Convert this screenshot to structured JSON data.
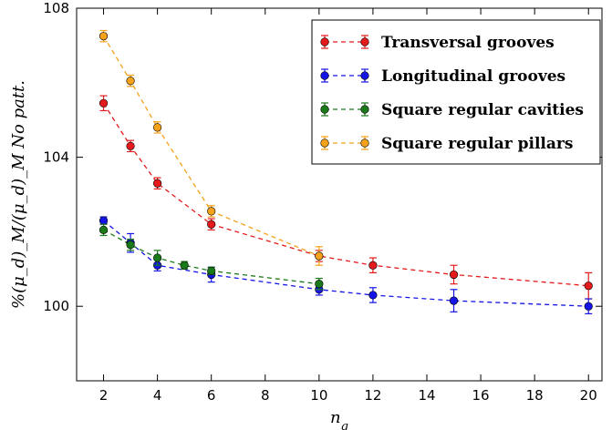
{
  "chart_data": {
    "type": "scatter",
    "title": "",
    "xlabel": "n_g",
    "ylabel": "%(μ_d)_M/(μ_d)_M No patt.",
    "xlim": [
      1,
      20.5
    ],
    "ylim": [
      98,
      108
    ],
    "x_ticks": [
      "2",
      "4",
      "6",
      "8",
      "10",
      "12",
      "14",
      "16",
      "18",
      "20"
    ],
    "x_tick_values": [
      2,
      4,
      6,
      8,
      10,
      12,
      14,
      16,
      18,
      20
    ],
    "y_ticks": [
      "100",
      "104",
      "108"
    ],
    "y_tick_values": [
      100,
      104,
      108
    ],
    "grid": false,
    "legend_position": "top-right",
    "series": [
      {
        "name": "Transversal grooves",
        "color": "#e41a1c",
        "x": [
          2,
          3,
          4,
          6,
          10,
          12,
          15,
          20
        ],
        "y": [
          105.45,
          104.3,
          103.3,
          102.2,
          101.35,
          101.1,
          100.85,
          100.55
        ],
        "err": [
          0.2,
          0.15,
          0.15,
          0.15,
          0.15,
          0.2,
          0.25,
          0.35
        ]
      },
      {
        "name": "Longitudinal grooves",
        "color": "#1414e6",
        "x": [
          2,
          3,
          4,
          6,
          10,
          12,
          15,
          20
        ],
        "y": [
          102.3,
          101.7,
          101.1,
          100.85,
          100.45,
          100.3,
          100.15,
          100.0
        ],
        "err": [
          0.1,
          0.25,
          0.15,
          0.2,
          0.15,
          0.2,
          0.3,
          0.2
        ]
      },
      {
        "name": "Square regular cavities",
        "color": "#1a7a1a",
        "x": [
          2,
          3,
          4,
          5,
          6,
          10
        ],
        "y": [
          102.05,
          101.65,
          101.3,
          101.1,
          100.95,
          100.6
        ],
        "err": [
          0.15,
          0.15,
          0.2,
          0.1,
          0.1,
          0.15
        ]
      },
      {
        "name": "Square regular pillars",
        "color": "#f5a11a",
        "x": [
          2,
          3,
          4,
          6,
          10
        ],
        "y": [
          107.25,
          106.05,
          104.8,
          102.55,
          101.35
        ],
        "err": [
          0.15,
          0.15,
          0.15,
          0.15,
          0.25
        ]
      }
    ]
  }
}
